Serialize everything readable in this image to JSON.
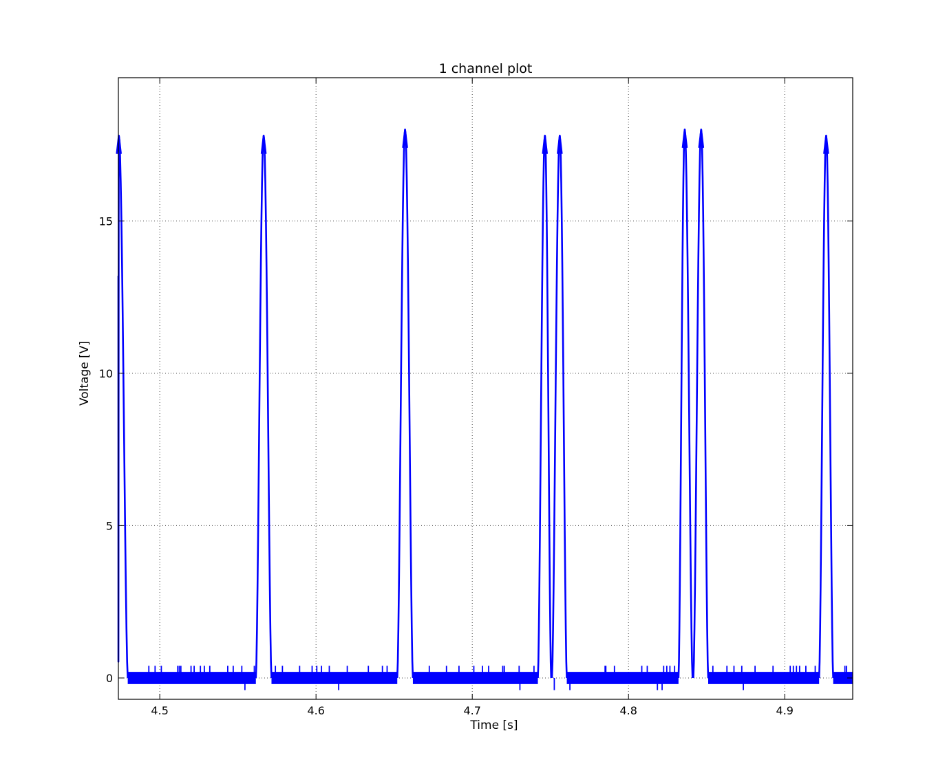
{
  "chart_data": {
    "type": "line",
    "title": "1 channel plot",
    "xlabel": "Time [s]",
    "ylabel": "Voltage [V]",
    "xlim": [
      4.4735,
      4.9435
    ],
    "ylim": [
      -0.7,
      19.7
    ],
    "xticks": [
      4.5,
      4.6,
      4.7,
      4.8,
      4.9
    ],
    "xtick_labels": [
      "4.5",
      "4.6",
      "4.7",
      "4.8",
      "4.9"
    ],
    "yticks": [
      0,
      5,
      10,
      15
    ],
    "ytick_labels": [
      "0",
      "5",
      "10",
      "15"
    ],
    "grid": true,
    "legend": "none",
    "series_color": "#0000ff",
    "series": [
      {
        "pulses": [
          {
            "rise_start": 4.4735,
            "peak": 4.4738,
            "fall_end": 4.4795,
            "peak_value": 17.8
          },
          {
            "rise_start": 4.5615,
            "peak": 4.5665,
            "fall_end": 4.5715,
            "peak_value": 17.8
          },
          {
            "rise_start": 4.652,
            "peak": 4.657,
            "fall_end": 4.662,
            "peak_value": 18.0
          },
          {
            "rise_start": 4.742,
            "peak": 4.7465,
            "fall_end": 4.7505,
            "peak_value": 17.8
          },
          {
            "rise_start": 4.751,
            "peak": 4.756,
            "fall_end": 4.7605,
            "peak_value": 17.8
          },
          {
            "rise_start": 4.832,
            "peak": 4.836,
            "fall_end": 4.841,
            "peak_value": 18.0
          },
          {
            "rise_start": 4.8415,
            "peak": 4.8465,
            "fall_end": 4.851,
            "peak_value": 18.0
          },
          {
            "rise_start": 4.922,
            "peak": 4.9265,
            "fall_end": 4.931,
            "peak_value": 17.8
          }
        ],
        "baseline_band": [
          -0.2,
          0.2
        ],
        "baseline_spikes": [
          4.493,
          4.497,
          4.501,
          4.5115,
          4.5125,
          4.5135,
          4.52,
          4.522,
          4.526,
          4.5285,
          4.532,
          4.5435,
          4.547,
          4.5525,
          4.5605,
          4.574,
          4.5785,
          4.5895,
          4.5975,
          4.6005,
          4.6035,
          4.6085,
          4.62,
          4.6335,
          4.6425,
          4.6455,
          4.6725,
          4.6835,
          4.6915,
          4.701,
          4.7065,
          4.7105,
          4.7195,
          4.7205,
          4.73,
          4.7395,
          4.785,
          4.7855,
          4.791,
          4.8085,
          4.812,
          4.8225,
          4.8245,
          4.8265,
          4.8295,
          4.854,
          4.863,
          4.8675,
          4.8725,
          4.881,
          4.8925,
          4.9035,
          4.9055,
          4.9075,
          4.9095,
          4.9135,
          4.9195,
          4.9385,
          4.9395
        ],
        "baseline_dips": [
          4.5545,
          4.6145,
          4.7305,
          4.7525,
          4.7625,
          4.8185,
          4.8215,
          4.8735
        ]
      }
    ]
  }
}
